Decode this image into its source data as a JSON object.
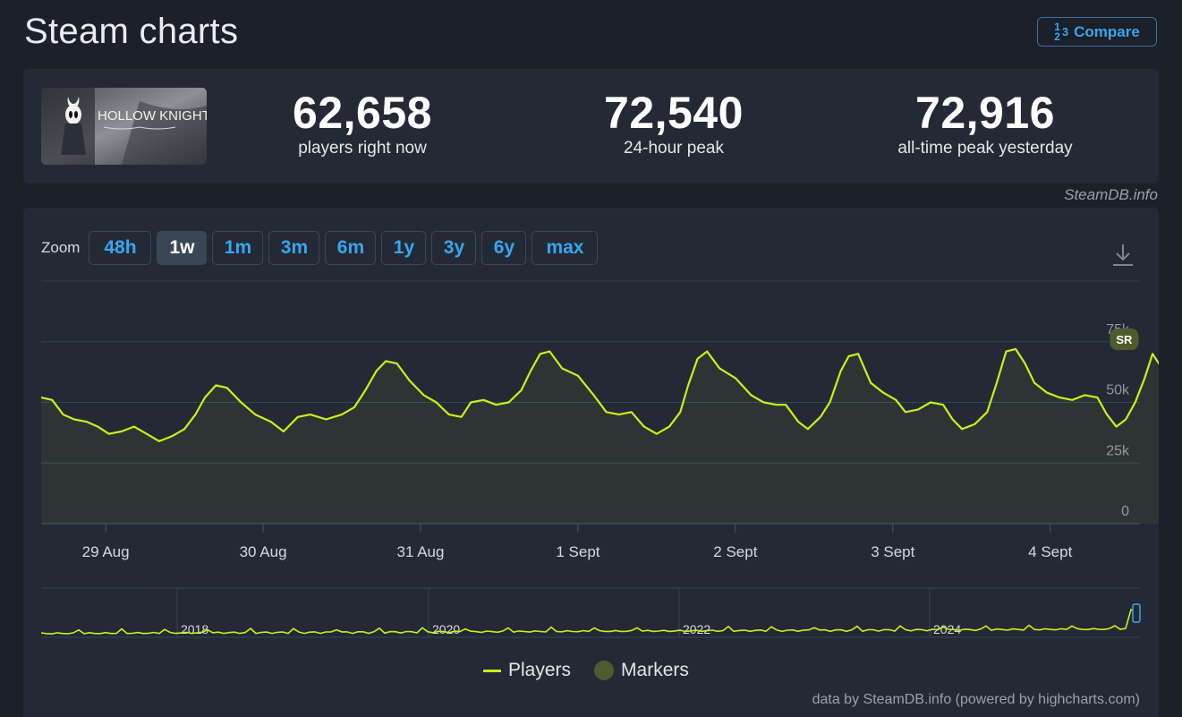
{
  "header": {
    "title": "Steam charts",
    "compare_label": "Compare",
    "compare_icon_top": "1",
    "compare_icon_frac": "2",
    "compare_icon_right": "3"
  },
  "game": {
    "name": "HOLLOW KNIGHT"
  },
  "stats": [
    {
      "value": "62,658",
      "label": "players right now"
    },
    {
      "value": "72,540",
      "label": "24-hour peak"
    },
    {
      "value": "72,916",
      "label": "all-time peak yesterday"
    }
  ],
  "credit": "SteamDB.info",
  "zoom": {
    "label": "Zoom",
    "options": [
      "48h",
      "1w",
      "1m",
      "3m",
      "6m",
      "1y",
      "3y",
      "6y",
      "max"
    ],
    "active": "1w"
  },
  "chart_data": {
    "type": "line",
    "y_ticks": [
      "0",
      "25k",
      "50k",
      "75k"
    ],
    "ylim": [
      0,
      75000
    ],
    "x_ticks": [
      "29 Aug",
      "30 Aug",
      "31 Aug",
      "1 Sept",
      "2 Sept",
      "3 Sept",
      "4 Sept"
    ],
    "x_range_days": [
      -0.41,
      6.57
    ],
    "marker_label": "SR",
    "marker_position": {
      "x_day": 6.47,
      "y_value": 76000
    },
    "series": [
      {
        "name": "Players",
        "color": "#c6f21b",
        "points": [
          [
            -0.41,
            52000
          ],
          [
            -0.34,
            51000
          ],
          [
            -0.27,
            45000
          ],
          [
            -0.2,
            43000
          ],
          [
            -0.12,
            42000
          ],
          [
            -0.05,
            40000
          ],
          [
            0.02,
            37000
          ],
          [
            0.1,
            38000
          ],
          [
            0.18,
            40000
          ],
          [
            0.26,
            37000
          ],
          [
            0.34,
            34000
          ],
          [
            0.42,
            36000
          ],
          [
            0.5,
            39000
          ],
          [
            0.57,
            45000
          ],
          [
            0.63,
            52000
          ],
          [
            0.7,
            57000
          ],
          [
            0.77,
            56000
          ],
          [
            0.86,
            50000
          ],
          [
            0.95,
            45000
          ],
          [
            1.05,
            42000
          ],
          [
            1.13,
            38000
          ],
          [
            1.22,
            44000
          ],
          [
            1.3,
            45000
          ],
          [
            1.4,
            43000
          ],
          [
            1.5,
            45000
          ],
          [
            1.58,
            48000
          ],
          [
            1.65,
            55000
          ],
          [
            1.72,
            63000
          ],
          [
            1.78,
            67000
          ],
          [
            1.85,
            66000
          ],
          [
            1.93,
            59000
          ],
          [
            2.02,
            53000
          ],
          [
            2.1,
            50000
          ],
          [
            2.18,
            45000
          ],
          [
            2.26,
            44000
          ],
          [
            2.32,
            50000
          ],
          [
            2.4,
            51000
          ],
          [
            2.48,
            49000
          ],
          [
            2.56,
            50000
          ],
          [
            2.64,
            55000
          ],
          [
            2.7,
            63000
          ],
          [
            2.76,
            70000
          ],
          [
            2.82,
            71000
          ],
          [
            2.9,
            64000
          ],
          [
            3.0,
            61000
          ],
          [
            3.1,
            53000
          ],
          [
            3.18,
            46000
          ],
          [
            3.26,
            45000
          ],
          [
            3.34,
            46000
          ],
          [
            3.42,
            40000
          ],
          [
            3.5,
            37000
          ],
          [
            3.58,
            40000
          ],
          [
            3.65,
            46000
          ],
          [
            3.7,
            57000
          ],
          [
            3.76,
            68000
          ],
          [
            3.82,
            71000
          ],
          [
            3.9,
            64000
          ],
          [
            4.0,
            60000
          ],
          [
            4.1,
            53000
          ],
          [
            4.18,
            50000
          ],
          [
            4.26,
            49000
          ],
          [
            4.32,
            49000
          ],
          [
            4.4,
            42000
          ],
          [
            4.46,
            39000
          ],
          [
            4.54,
            44000
          ],
          [
            4.6,
            50000
          ],
          [
            4.67,
            63000
          ],
          [
            4.72,
            69000
          ],
          [
            4.78,
            70000
          ],
          [
            4.86,
            58000
          ],
          [
            4.94,
            54000
          ],
          [
            5.02,
            51000
          ],
          [
            5.08,
            46000
          ],
          [
            5.16,
            47000
          ],
          [
            5.24,
            50000
          ],
          [
            5.32,
            49000
          ],
          [
            5.38,
            43000
          ],
          [
            5.44,
            39000
          ],
          [
            5.52,
            41000
          ],
          [
            5.6,
            46000
          ],
          [
            5.66,
            58000
          ],
          [
            5.72,
            71000
          ],
          [
            5.78,
            72000
          ],
          [
            5.84,
            66000
          ],
          [
            5.9,
            58000
          ],
          [
            5.98,
            54000
          ],
          [
            6.06,
            52000
          ],
          [
            6.14,
            51000
          ],
          [
            6.22,
            53000
          ],
          [
            6.3,
            52000
          ],
          [
            6.36,
            45000
          ],
          [
            6.42,
            40000
          ],
          [
            6.48,
            43000
          ],
          [
            6.54,
            50000
          ],
          [
            6.6,
            60000
          ],
          [
            6.65,
            70000
          ],
          [
            6.7,
            65000
          ]
        ]
      }
    ],
    "navigator": {
      "x_labels": [
        "2018",
        "2020",
        "2022",
        "2024"
      ]
    },
    "legend": [
      "Players",
      "Markers"
    ],
    "grid": true
  },
  "footer_credit": "data by SteamDB.info (powered by highcharts.com)"
}
